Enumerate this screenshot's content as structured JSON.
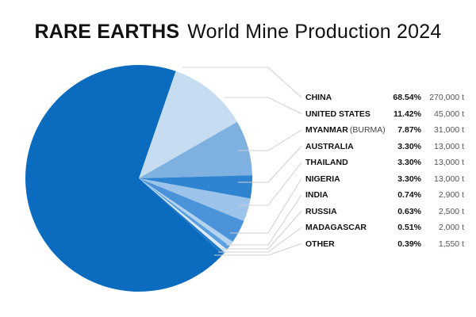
{
  "title": {
    "bold": "RARE EARTHS",
    "light": "World Mine Production 2024"
  },
  "chart_data": {
    "type": "pie",
    "title": "RARE EARTHS World Mine Production 2024",
    "unit": "t",
    "categories": [
      "CHINA",
      "UNITED STATES",
      "MYANMAR (BURMA)",
      "AUSTRALIA",
      "THAILAND",
      "NIGERIA",
      "INDIA",
      "RUSSIA",
      "MADAGASCAR",
      "OTHER"
    ],
    "values": [
      270000,
      45000,
      31000,
      13000,
      13000,
      13000,
      2900,
      2500,
      2000,
      1550
    ],
    "percentages": [
      68.54,
      11.42,
      7.87,
      3.3,
      3.3,
      3.3,
      0.74,
      0.63,
      0.51,
      0.39
    ],
    "legend_position": "right"
  },
  "legend": [
    {
      "name": "CHINA",
      "sub": "",
      "pct": "68.54%",
      "val": "270,000 t",
      "color": "#0a6bbf"
    },
    {
      "name": "UNITED STATES",
      "sub": "",
      "pct": "11.42%",
      "val": "45,000 t",
      "color": "#c6dcf1"
    },
    {
      "name": "MYANMAR",
      "sub": "(BURMA)",
      "pct": "7.87%",
      "val": "31,000 t",
      "color": "#7eb1e0"
    },
    {
      "name": "AUSTRALIA",
      "sub": "",
      "pct": "3.30%",
      "val": "13,000 t",
      "color": "#2f84d2"
    },
    {
      "name": "THAILAND",
      "sub": "",
      "pct": "3.30%",
      "val": "13,000 t",
      "color": "#9cc3e9"
    },
    {
      "name": "NIGERIA",
      "sub": "",
      "pct": "3.30%",
      "val": "13,000 t",
      "color": "#4a93d9"
    },
    {
      "name": "INDIA",
      "sub": "",
      "pct": "0.74%",
      "val": "2,900 t",
      "color": "#b5d3ef"
    },
    {
      "name": "RUSSIA",
      "sub": "",
      "pct": "0.63%",
      "val": "2,500 t",
      "color": "#5aa0de"
    },
    {
      "name": "MADAGASCAR",
      "sub": "",
      "pct": "0.51%",
      "val": "2,000 t",
      "color": "#ddeaf7"
    },
    {
      "name": "OTHER",
      "sub": "",
      "pct": "0.39%",
      "val": "1,550 t",
      "color": "#1f78c8"
    }
  ]
}
